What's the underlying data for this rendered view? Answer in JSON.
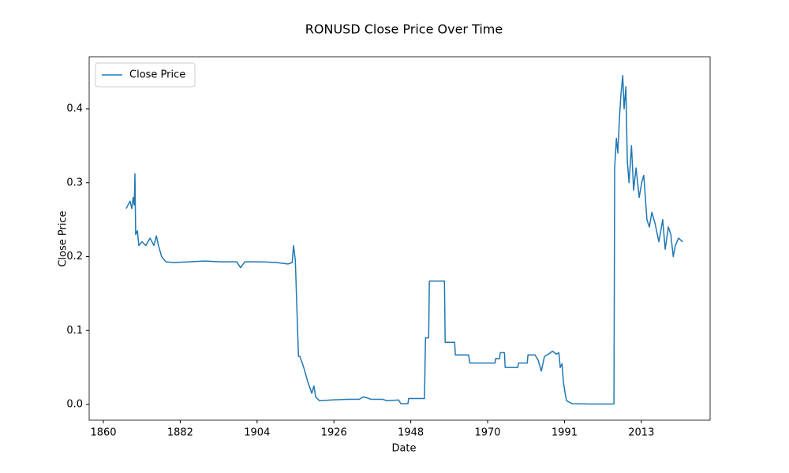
{
  "chart_data": {
    "type": "line",
    "title": "RONUSD Close Price Over Time",
    "x_label": "Date",
    "y_label": "Close Price",
    "legend": "upper left",
    "grid": false,
    "xlim": [
      1856.45,
      2033.4
    ],
    "ylim": [
      -0.0213,
      0.4704
    ],
    "xticks": [
      {
        "value": 1860.5,
        "label": "1860"
      },
      {
        "value": 1882.4,
        "label": "1882"
      },
      {
        "value": 1904.3,
        "label": "1904"
      },
      {
        "value": 1926.2,
        "label": "1926"
      },
      {
        "value": 1948.1,
        "label": "1948"
      },
      {
        "value": 1970.0,
        "label": "1970"
      },
      {
        "value": 1991.9,
        "label": "1991"
      },
      {
        "value": 2013.8,
        "label": "2013"
      }
    ],
    "yticks": [
      {
        "value": 0,
        "label": "0.0"
      },
      0.1,
      0.2,
      0.3,
      0.4
    ],
    "x": [
      1867.0,
      1868.1,
      1868.6,
      1869.0,
      1869.3,
      1869.5,
      1869.7,
      1870.2,
      1870.6,
      1871.5,
      1872.6,
      1873.8,
      1874.9,
      1875.6,
      1876.2,
      1877.1,
      1878.3,
      1880.5,
      1885.0,
      1889.5,
      1894.0,
      1898.5,
      1899.6,
      1900.8,
      1905.3,
      1909.8,
      1913.1,
      1914.3,
      1914.7,
      1915.2,
      1916.1,
      1916.5,
      1917.6,
      1918.8,
      1919.9,
      1920.5,
      1921.0,
      1922.1,
      1925.5,
      1930.0,
      1933.4,
      1934.5,
      1935.6,
      1936.7,
      1940.1,
      1941.2,
      1944.6,
      1945.3,
      1947.3,
      1947.5,
      1952.0,
      1952.3,
      1953.2,
      1953.4,
      1957.7,
      1957.9,
      1960.6,
      1960.8,
      1964.6,
      1964.9,
      1972.1,
      1972.3,
      1973.4,
      1973.6,
      1974.8,
      1975.0,
      1978.6,
      1978.8,
      1981.3,
      1981.5,
      1983.5,
      1984.4,
      1985.3,
      1986.2,
      1987.3,
      1988.5,
      1989.6,
      1990.3,
      1990.7,
      1991.2,
      1991.6,
      1992.1,
      1992.5,
      1994.1,
      1999.7,
      2006.0,
      2006.2,
      2006.7,
      2007.1,
      2007.6,
      2008.0,
      2008.5,
      2008.9,
      2009.4,
      2009.8,
      2010.3,
      2011.0,
      2011.6,
      2012.3,
      2013.2,
      2013.9,
      2014.5,
      2015.4,
      2016.1,
      2016.8,
      2017.7,
      2018.8,
      2019.9,
      2020.6,
      2021.5,
      2022.2,
      2022.9,
      2023.5,
      2024.4,
      2025.6
    ],
    "series": [
      {
        "name": "Close Price",
        "color": "#1f77b4",
        "values": [
          0.265,
          0.275,
          0.265,
          0.28,
          0.27,
          0.312,
          0.23,
          0.235,
          0.215,
          0.22,
          0.215,
          0.225,
          0.215,
          0.228,
          0.215,
          0.2,
          0.193,
          0.192,
          0.193,
          0.194,
          0.193,
          0.193,
          0.185,
          0.193,
          0.193,
          0.192,
          0.19,
          0.192,
          0.215,
          0.195,
          0.065,
          0.065,
          0.05,
          0.03,
          0.015,
          0.025,
          0.01,
          0.005,
          0.006,
          0.007,
          0.007,
          0.01,
          0.009,
          0.007,
          0.007,
          0.005,
          0.006,
          0.001,
          0.001,
          0.008,
          0.008,
          0.09,
          0.09,
          0.167,
          0.167,
          0.084,
          0.084,
          0.067,
          0.067,
          0.056,
          0.056,
          0.062,
          0.062,
          0.07,
          0.07,
          0.05,
          0.05,
          0.056,
          0.056,
          0.067,
          0.067,
          0.06,
          0.045,
          0.065,
          0.068,
          0.072,
          0.068,
          0.07,
          0.05,
          0.055,
          0.03,
          0.015,
          0.005,
          0.001,
          0.0005,
          0.0005,
          0.32,
          0.36,
          0.34,
          0.39,
          0.42,
          0.445,
          0.4,
          0.43,
          0.33,
          0.3,
          0.35,
          0.29,
          0.32,
          0.28,
          0.3,
          0.31,
          0.25,
          0.24,
          0.26,
          0.245,
          0.22,
          0.25,
          0.21,
          0.24,
          0.23,
          0.2,
          0.215,
          0.225,
          0.22
        ]
      }
    ]
  }
}
